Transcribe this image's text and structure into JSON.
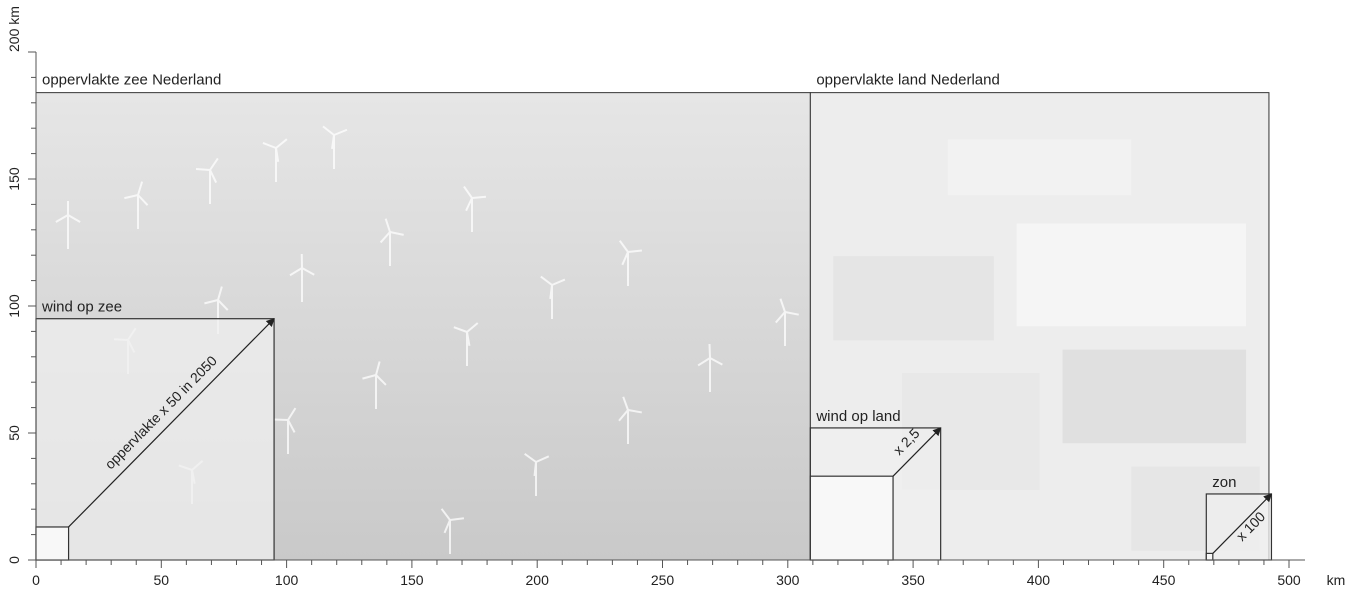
{
  "chart_data": {
    "type": "diagram",
    "axes": {
      "x": {
        "min": 0,
        "max": 500,
        "ticks": [
          0,
          50,
          100,
          150,
          200,
          250,
          300,
          350,
          400,
          450,
          500
        ],
        "unit": "km"
      },
      "y": {
        "min": 0,
        "max": 200,
        "ticks": [
          0,
          50,
          100,
          150,
          200
        ],
        "unit": "km"
      }
    },
    "regions": [
      {
        "key": "sea",
        "label": "oppervlakte zee Nederland",
        "x0": 0,
        "x1": 309,
        "y0": 0,
        "y1": 184,
        "fill": "#d7d7d7"
      },
      {
        "key": "land",
        "label": "oppervlakte land Nederland",
        "x0": 309,
        "x1": 492,
        "y0": 0,
        "y1": 184,
        "fill": "#ededed"
      }
    ],
    "squares": [
      {
        "key": "wind_sea",
        "label": "wind op zee",
        "x0": 0,
        "side": 95,
        "base_side": 13,
        "arrow_label": "oppervlakte x 50 in 2050"
      },
      {
        "key": "wind_land",
        "label": "wind op land",
        "x0": 309,
        "side": 52,
        "base_side": 33,
        "arrow_label": "x 2,5"
      },
      {
        "key": "sun",
        "label": "zon",
        "x0": 467,
        "side": 26,
        "base_side": 2.6,
        "arrow_label": "x 100"
      }
    ],
    "colors": {
      "axis": "#555555",
      "frame": "#333333",
      "arrow": "#222222"
    }
  }
}
